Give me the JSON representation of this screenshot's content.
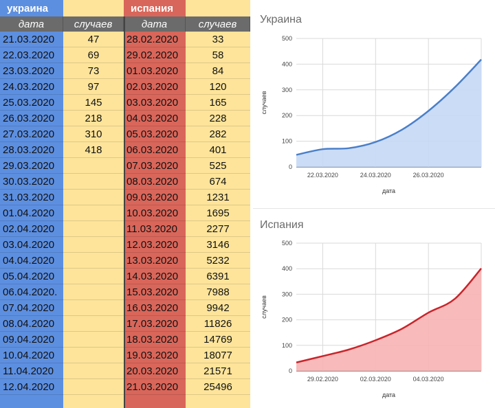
{
  "table": {
    "ukraine": {
      "title": "украина",
      "date_header": "дата",
      "cases_header": "случаев",
      "dates": [
        "21.03.2020",
        "22.03.2020",
        "23.03.2020",
        "24.03.2020",
        "25.03.2020",
        "26.03.2020",
        "27.03.2020",
        "28.03.2020",
        "29.03.2020",
        "30.03.2020",
        "31.03.2020",
        "01.04.2020",
        "02.04.2020",
        "03.04.2020",
        "04.04.2020",
        "05.04.2020",
        "06.04.2020.",
        "07.04.2020",
        "08.04.2020",
        "09.04.2020",
        "10.04.2020",
        "11.04.2020",
        "12.04.2020"
      ],
      "cases": [
        "47",
        "69",
        "73",
        "97",
        "145",
        "218",
        "310",
        "418",
        "",
        "",
        "",
        "",
        "",
        "",
        "",
        "",
        "",
        "",
        "",
        "",
        "",
        "",
        ""
      ]
    },
    "spain": {
      "title": "испания",
      "date_header": "дата",
      "cases_header": "случаев",
      "dates": [
        "28.02.2020",
        "29.02.2020",
        "01.03.2020",
        "02.03.2020",
        "03.03.2020",
        "04.03.2020",
        "05.03.2020",
        "06.03.2020",
        "07.03.2020",
        "08.03.2020",
        "09.03.2020",
        "10.03.2020",
        "11.03.2020",
        "12.03.2020",
        "13.03.2020",
        "14.03.2020",
        "15.03.2020",
        "16.03.2020",
        "17.03.2020",
        "18.03.2020",
        "19.03.2020",
        "20.03.2020",
        "21.03.2020"
      ],
      "cases": [
        "33",
        "58",
        "84",
        "120",
        "165",
        "228",
        "282",
        "401",
        "525",
        "674",
        "1231",
        "1695",
        "2277",
        "3146",
        "5232",
        "6391",
        "7988",
        "9942",
        "11826",
        "14769",
        "18077",
        "21571",
        "25496"
      ]
    }
  },
  "colors": {
    "ukraine_col": "#5d8fe0",
    "ukraine_line": "#4a7fc9",
    "ukraine_fill": "#c5d8f6",
    "spain_col": "#d9665a",
    "spain_line": "#c9242a",
    "spain_fill": "#f7b3b3",
    "cases_col": "#fde49a",
    "col_header": "#6b6b6b"
  },
  "chart_data": [
    {
      "type": "area",
      "title": "Украина",
      "xlabel": "дата",
      "ylabel": "случаев",
      "ylim": [
        0,
        500
      ],
      "yticks": [
        0,
        100,
        200,
        300,
        400,
        500
      ],
      "x": [
        "21.03.2020",
        "22.03.2020",
        "23.03.2020",
        "24.03.2020",
        "25.03.2020",
        "26.03.2020",
        "27.03.2020",
        "28.03.2020"
      ],
      "xtick_labels": [
        "22.03.2020",
        "24.03.2020",
        "26.03.2020"
      ],
      "values": [
        47,
        69,
        73,
        97,
        145,
        218,
        310,
        418
      ],
      "grid": true
    },
    {
      "type": "area",
      "title": "Испания",
      "xlabel": "дата",
      "ylabel": "случаев",
      "ylim": [
        0,
        500
      ],
      "yticks": [
        0,
        100,
        200,
        300,
        400,
        500
      ],
      "x": [
        "28.02.2020",
        "29.02.2020",
        "01.03.2020",
        "02.03.2020",
        "03.03.2020",
        "04.03.2020",
        "05.03.2020",
        "06.03.2020"
      ],
      "xtick_labels": [
        "29.02.2020",
        "02.03.2020",
        "04.03.2020"
      ],
      "values": [
        33,
        58,
        84,
        120,
        165,
        228,
        282,
        401
      ],
      "grid": true
    }
  ]
}
